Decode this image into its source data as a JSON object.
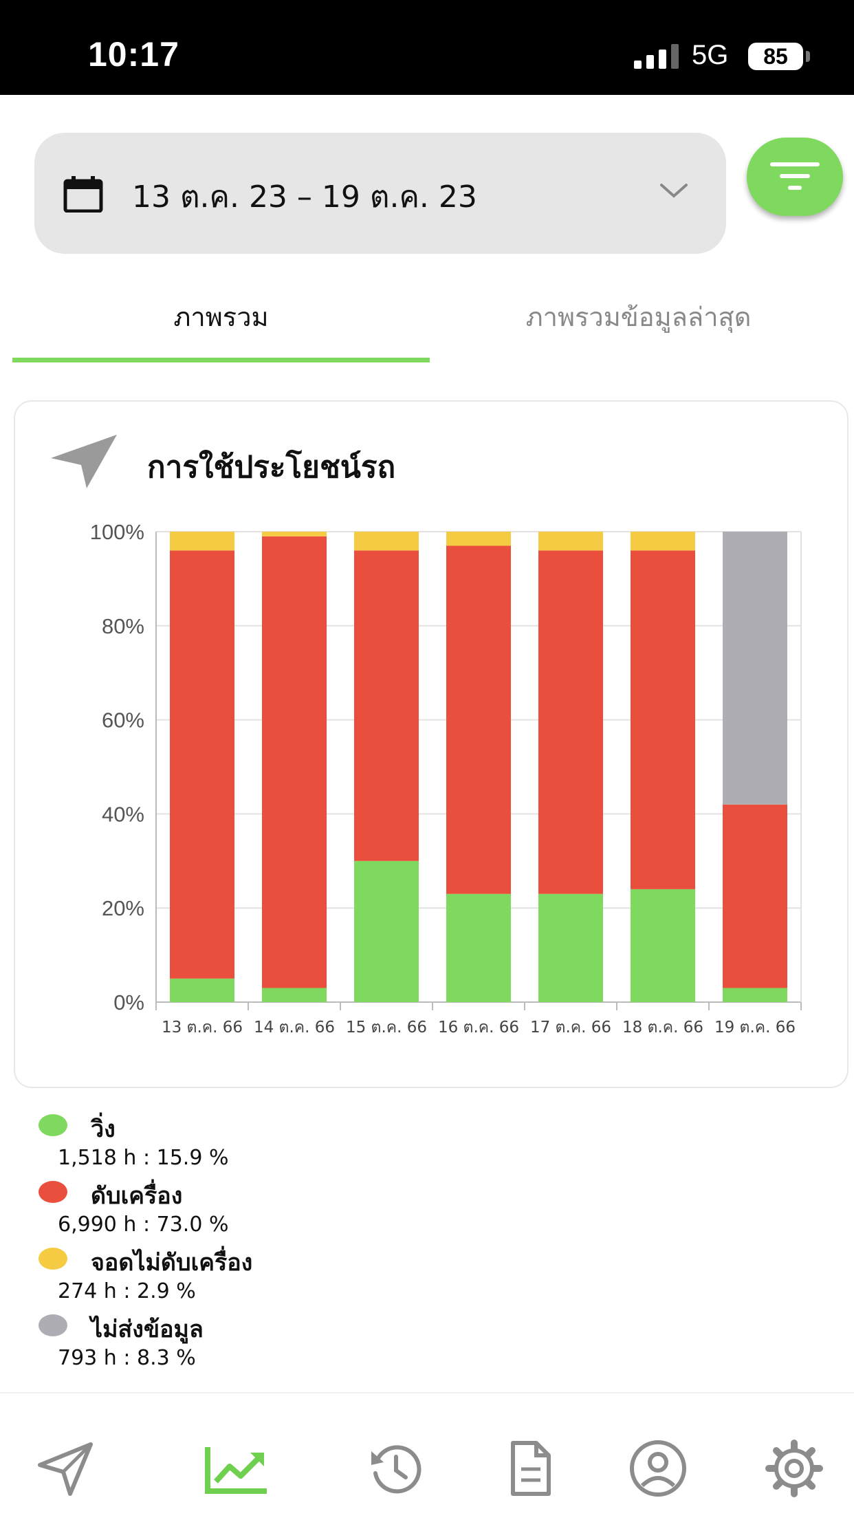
{
  "status_bar": {
    "time": "10:17",
    "network": "5G",
    "battery": "85"
  },
  "date_filter": {
    "range": "13 ต.ค. 23 – 19 ต.ค. 23",
    "icon": "calendar-icon"
  },
  "filter_button": {
    "icon": "filter-icon"
  },
  "tabs": [
    {
      "label": "ภาพรวม",
      "active": true
    },
    {
      "label": "ภาพรวมข้อมูลล่าสุด",
      "active": false
    }
  ],
  "card": {
    "title": "การใช้ประโยชน์รถ",
    "icon": "navigation-arrow-icon"
  },
  "chart_data": {
    "type": "bar",
    "stacked": true,
    "categories": [
      "13 ต.ค. 66",
      "14 ต.ค. 66",
      "15 ต.ค. 66",
      "16 ต.ค. 66",
      "17 ต.ค. 66",
      "18 ต.ค. 66",
      "19 ต.ค. 66"
    ],
    "series": [
      {
        "name": "วิ่ง",
        "color": "#7fd95e",
        "values": [
          5,
          3,
          30,
          23,
          23,
          24,
          3
        ]
      },
      {
        "name": "ดับเครื่อง",
        "color": "#e94f3c",
        "values": [
          91,
          96,
          66,
          74,
          73,
          72,
          39
        ]
      },
      {
        "name": "จอดไม่ดับเครื่อง",
        "color": "#f6cb44",
        "values": [
          4,
          1,
          4,
          3,
          4,
          4,
          0
        ]
      },
      {
        "name": "ไม่ส่งข้อมูล",
        "color": "#aeadb3",
        "values": [
          0,
          0,
          0,
          0,
          0,
          0,
          58
        ]
      }
    ],
    "y_ticks": [
      "0%",
      "20%",
      "40%",
      "60%",
      "80%",
      "100%"
    ],
    "ylim": [
      0,
      100
    ],
    "grid": true
  },
  "legend": [
    {
      "label": "วิ่ง",
      "value": "1,518 h : 15.9 %",
      "color": "#7fd95e"
    },
    {
      "label": "ดับเครื่อง",
      "value": "6,990 h : 73.0 %",
      "color": "#e94f3c"
    },
    {
      "label": "จอดไม่ดับเครื่อง",
      "value": "274 h : 2.9 %",
      "color": "#f6cb44"
    },
    {
      "label": "ไม่ส่งข้อมูล",
      "value": "793 h : 8.3 %",
      "color": "#aeadb3"
    }
  ],
  "bottom_nav": [
    {
      "icon": "navigation-icon",
      "active": false
    },
    {
      "icon": "chart-line-icon",
      "active": true
    },
    {
      "icon": "history-icon",
      "active": false
    },
    {
      "icon": "document-icon",
      "active": false
    },
    {
      "icon": "profile-icon",
      "active": false
    },
    {
      "icon": "settings-icon",
      "active": false
    }
  ]
}
